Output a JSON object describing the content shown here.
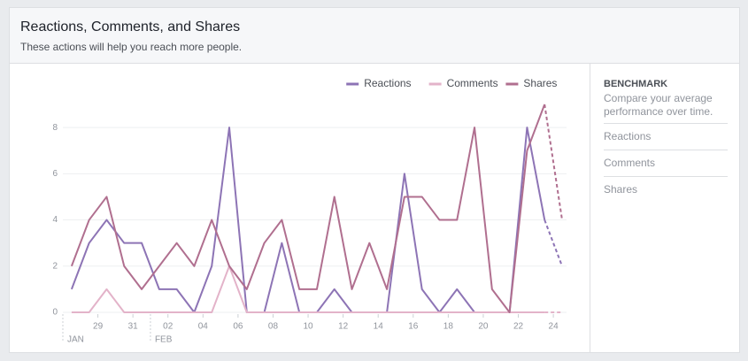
{
  "header": {
    "title": "Reactions, Comments, and Shares",
    "subtitle": "These actions will help you reach more people."
  },
  "chart_data": {
    "type": "line",
    "x": [
      0,
      1,
      2,
      3,
      4,
      5,
      6,
      7,
      8,
      9,
      10,
      11,
      12,
      13,
      14,
      15,
      16,
      17,
      18,
      19,
      20,
      21,
      22,
      23,
      24,
      25,
      26,
      27,
      28
    ],
    "series": [
      {
        "name": "Reactions",
        "color": "#8d74b5",
        "values": [
          1,
          3,
          4,
          3,
          3,
          1,
          1,
          0,
          2,
          8,
          0,
          0,
          3,
          0,
          0,
          1,
          0,
          0,
          0,
          6,
          1,
          0,
          1,
          0,
          0,
          0,
          8,
          4,
          2
        ]
      },
      {
        "name": "Comments",
        "color": "#e3b3c9",
        "values": [
          0,
          0,
          1,
          0,
          0,
          0,
          0,
          0,
          0,
          2,
          0,
          0,
          0,
          0,
          0,
          0,
          0,
          0,
          0,
          0,
          0,
          0,
          0,
          0,
          0,
          0,
          0,
          0,
          0
        ]
      },
      {
        "name": "Shares",
        "color": "#b06f8f",
        "values": [
          2,
          4,
          5,
          2,
          1,
          2,
          3,
          2,
          4,
          2,
          1,
          3,
          4,
          1,
          1,
          5,
          1,
          3,
          1,
          5,
          5,
          4,
          4,
          8,
          1,
          0,
          7,
          9,
          4
        ]
      }
    ],
    "dashed_last": true,
    "xlim": [
      -0.5,
      28
    ],
    "xticks": [
      {
        "value": 1.5,
        "label": "29"
      },
      {
        "value": 3.5,
        "label": "31"
      },
      {
        "value": 5.5,
        "label": "02"
      },
      {
        "value": 7.5,
        "label": "04"
      },
      {
        "value": 9.5,
        "label": "06"
      },
      {
        "value": 11.5,
        "label": "08"
      },
      {
        "value": 13.5,
        "label": "10"
      },
      {
        "value": 15.5,
        "label": "12"
      },
      {
        "value": 17.5,
        "label": "14"
      },
      {
        "value": 19.5,
        "label": "16"
      },
      {
        "value": 21.5,
        "label": "18"
      },
      {
        "value": 23.5,
        "label": "20"
      },
      {
        "value": 25.5,
        "label": "22"
      },
      {
        "value": 27.5,
        "label": "24"
      }
    ],
    "month_labels": [
      {
        "value": -0.5,
        "label": "JAN"
      },
      {
        "value": 4.5,
        "label": "FEB"
      }
    ],
    "ylim": [
      0,
      9
    ],
    "yticks": [
      0,
      2,
      4,
      6,
      8
    ],
    "grid": true,
    "legend": "top-right"
  },
  "benchmark": {
    "title": "BENCHMARK",
    "description": "Compare your average performance over time.",
    "items": [
      "Reactions",
      "Comments",
      "Shares"
    ]
  }
}
